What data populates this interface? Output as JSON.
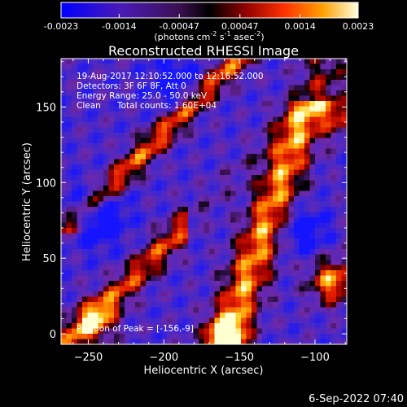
{
  "chart_data": {
    "type": "heatmap",
    "title": "Reconstructed RHESSI Image",
    "xlabel": "Heliocentric X (arcsec)",
    "ylabel": "Heliocentric Y (arcsec)",
    "xlim": [
      -268,
      -79
    ],
    "ylim": [
      -7,
      182
    ],
    "xticks": [
      -250,
      -200,
      -150,
      -100
    ],
    "yticks": [
      0,
      50,
      100,
      150
    ],
    "colorbar": {
      "range": [
        -0.0023,
        0.0023
      ],
      "tick_labels": [
        "-0.0023",
        "-0.0014",
        "-0.00047",
        "0.00047",
        "0.0014",
        "0.0023"
      ],
      "tick_values": [
        -0.0023,
        -0.0014,
        -0.00047,
        0.00047,
        0.0014,
        0.0023
      ],
      "unit_prefix": "(photons cm",
      "unit_exp1": "-2",
      "unit_mid1": " s",
      "unit_exp2": "-1",
      "unit_mid2": " asec",
      "unit_exp3": "-2",
      "unit_suffix": ")"
    },
    "annotations": {
      "time_range": "19-Aug-2017 12:10:52.000 to 12:16:52.000",
      "detectors": "Detectors: 3F 6F 8F, Att 0",
      "energy": "Energy Range: 25.0 - 50.0 keV",
      "clean_label": "Clean",
      "total_counts": "Total counts: 1.60E+04",
      "peak": "Position of Peak = [-156,-9]"
    },
    "footer_date": "6-Sep-2022 07:40",
    "colors": {
      "negative": "#1a1aff",
      "zero": "#000000",
      "positive": "#ffffd0"
    }
  }
}
